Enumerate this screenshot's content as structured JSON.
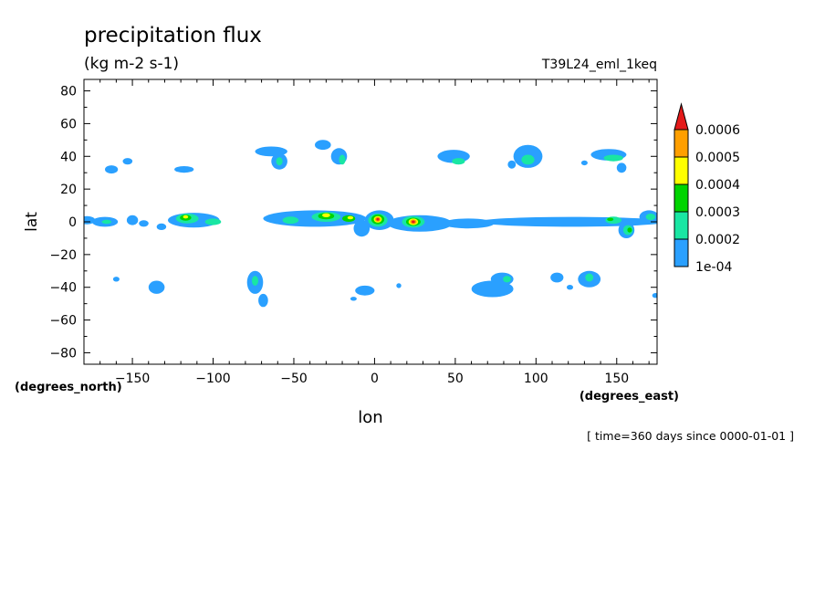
{
  "chart_data": {
    "type": "heatmap",
    "title": "precipitation flux",
    "subtitle": "(kg m-2 s-1)",
    "run_label": "T39L24_eml_1keq",
    "xlabel": "lon",
    "ylabel": "lat",
    "x_units": "(degrees_east)",
    "y_units": "(degrees_north)",
    "time_label": "[ time=360 days since 0000-01-01 ]",
    "xlim": [
      -180,
      175
    ],
    "ylim": [
      -87,
      87
    ],
    "x_ticks": [
      -150,
      -100,
      -50,
      0,
      50,
      100,
      150
    ],
    "x_tick_labels": [
      "−150",
      "−100",
      "−50",
      "0",
      "50",
      "100",
      "150"
    ],
    "y_ticks": [
      80,
      60,
      40,
      20,
      0,
      -20,
      -40,
      -60,
      -80
    ],
    "y_tick_labels": [
      "80",
      "60",
      "40",
      "20",
      "0",
      "−20",
      "−40",
      "−60",
      "−80"
    ],
    "colorbar": {
      "levels": [
        0.0001,
        0.0002,
        0.0003,
        0.0004,
        0.0005,
        0.0006
      ],
      "labels": [
        "1e-04",
        "0.0002",
        "0.0003",
        "0.0004",
        "0.0005",
        "0.0006"
      ],
      "colors": [
        "#2aa0ff",
        "#19e6a3",
        "#00d400",
        "#ffff00",
        "#ff9f00",
        "#e41a1a"
      ]
    },
    "regions": [
      {
        "lon": -178,
        "lat": 1,
        "rx": 5,
        "ry": 2.5,
        "level": 0
      },
      {
        "lon": -167,
        "lat": 0,
        "rx": 8,
        "ry": 3,
        "level": 0
      },
      {
        "lon": -166,
        "lat": 0,
        "rx": 3,
        "ry": 1.2,
        "level": 1
      },
      {
        "lon": -150,
        "lat": 1,
        "rx": 3.5,
        "ry": 3,
        "level": 0
      },
      {
        "lon": -143,
        "lat": -1,
        "rx": 3,
        "ry": 2,
        "level": 0
      },
      {
        "lon": -132,
        "lat": -3,
        "rx": 3,
        "ry": 2,
        "level": 0
      },
      {
        "lon": -112,
        "lat": 1,
        "rx": 16,
        "ry": 4.5,
        "level": 0
      },
      {
        "lon": -116,
        "lat": 2,
        "rx": 7,
        "ry": 3,
        "level": 1
      },
      {
        "lon": -117,
        "lat": 2.5,
        "rx": 3.5,
        "ry": 1.8,
        "level": 2
      },
      {
        "lon": -117,
        "lat": 3,
        "rx": 1.6,
        "ry": 1,
        "level": 3
      },
      {
        "lon": -100,
        "lat": 0,
        "rx": 5,
        "ry": 2,
        "level": 1
      },
      {
        "lon": -37,
        "lat": 2,
        "rx": 32,
        "ry": 5,
        "level": 0
      },
      {
        "lon": -52,
        "lat": 1,
        "rx": 5,
        "ry": 2.2,
        "level": 1
      },
      {
        "lon": -30,
        "lat": 3,
        "rx": 9,
        "ry": 3,
        "level": 1
      },
      {
        "lon": -30,
        "lat": 3.5,
        "rx": 5,
        "ry": 2,
        "level": 2
      },
      {
        "lon": -30,
        "lat": 4,
        "rx": 2.5,
        "ry": 1.2,
        "level": 3
      },
      {
        "lon": -16,
        "lat": 2,
        "rx": 4,
        "ry": 2,
        "level": 2
      },
      {
        "lon": -15,
        "lat": 2.5,
        "rx": 1.8,
        "ry": 1,
        "level": 3
      },
      {
        "lon": -8,
        "lat": -4,
        "rx": 5,
        "ry": 5,
        "level": 0
      },
      {
        "lon": 3,
        "lat": 1,
        "rx": 9,
        "ry": 6,
        "level": 0
      },
      {
        "lon": 2,
        "lat": 1,
        "rx": 6,
        "ry": 4,
        "level": 1
      },
      {
        "lon": 2,
        "lat": 1.5,
        "rx": 4,
        "ry": 3,
        "level": 2
      },
      {
        "lon": 2,
        "lat": 1.5,
        "rx": 2.5,
        "ry": 2,
        "level": 3
      },
      {
        "lon": 2,
        "lat": 1.5,
        "rx": 1.7,
        "ry": 1.4,
        "level": 4
      },
      {
        "lon": 2,
        "lat": 1.5,
        "rx": 0.9,
        "ry": 0.8,
        "level": 5
      },
      {
        "lon": 28,
        "lat": -1,
        "rx": 20,
        "ry": 5,
        "level": 0
      },
      {
        "lon": 24,
        "lat": 0,
        "rx": 7,
        "ry": 3.5,
        "level": 1
      },
      {
        "lon": 24,
        "lat": 0,
        "rx": 4.5,
        "ry": 2.5,
        "level": 2
      },
      {
        "lon": 24,
        "lat": 0,
        "rx": 3,
        "ry": 2,
        "level": 3
      },
      {
        "lon": 24,
        "lat": 0,
        "rx": 2,
        "ry": 1.4,
        "level": 4
      },
      {
        "lon": 24,
        "lat": 0,
        "rx": 1,
        "ry": 0.8,
        "level": 5
      },
      {
        "lon": 58,
        "lat": -1,
        "rx": 16,
        "ry": 3,
        "level": 0
      },
      {
        "lon": 122,
        "lat": 0,
        "rx": 58,
        "ry": 3,
        "level": 0
      },
      {
        "lon": 148,
        "lat": 1,
        "rx": 5,
        "ry": 2.2,
        "level": 1
      },
      {
        "lon": 146,
        "lat": 1.5,
        "rx": 2,
        "ry": 1,
        "level": 2
      },
      {
        "lon": 156,
        "lat": -5,
        "rx": 5,
        "ry": 5,
        "level": 0
      },
      {
        "lon": 157,
        "lat": -5,
        "rx": 3,
        "ry": 3,
        "level": 1
      },
      {
        "lon": 158,
        "lat": -5,
        "rx": 1.4,
        "ry": 1.5,
        "level": 2
      },
      {
        "lon": 170,
        "lat": 3,
        "rx": 6,
        "ry": 4,
        "level": 0
      },
      {
        "lon": 171,
        "lat": 3,
        "rx": 3,
        "ry": 2,
        "level": 1
      },
      {
        "lon": -163,
        "lat": 32,
        "rx": 4,
        "ry": 2.5,
        "level": 0
      },
      {
        "lon": -153,
        "lat": 37,
        "rx": 3,
        "ry": 2,
        "level": 0
      },
      {
        "lon": -118,
        "lat": 32,
        "rx": 6,
        "ry": 2,
        "level": 0
      },
      {
        "lon": -64,
        "lat": 43,
        "rx": 10,
        "ry": 3,
        "level": 0
      },
      {
        "lon": -59,
        "lat": 37,
        "rx": 5,
        "ry": 5,
        "level": 0
      },
      {
        "lon": -59,
        "lat": 37,
        "rx": 2,
        "ry": 2.5,
        "level": 1
      },
      {
        "lon": -32,
        "lat": 47,
        "rx": 5,
        "ry": 3,
        "level": 0
      },
      {
        "lon": -22,
        "lat": 40,
        "rx": 5,
        "ry": 5,
        "level": 0
      },
      {
        "lon": -20,
        "lat": 38,
        "rx": 2,
        "ry": 3,
        "level": 1
      },
      {
        "lon": 49,
        "lat": 40,
        "rx": 10,
        "ry": 4,
        "level": 0
      },
      {
        "lon": 52,
        "lat": 37,
        "rx": 4,
        "ry": 2,
        "level": 1
      },
      {
        "lon": 95,
        "lat": 40,
        "rx": 9,
        "ry": 7,
        "level": 0
      },
      {
        "lon": 95,
        "lat": 38,
        "rx": 4,
        "ry": 3,
        "level": 1
      },
      {
        "lon": 85,
        "lat": 35,
        "rx": 2.5,
        "ry": 2.5,
        "level": 0
      },
      {
        "lon": 145,
        "lat": 41,
        "rx": 11,
        "ry": 3.5,
        "level": 0
      },
      {
        "lon": 148,
        "lat": 39,
        "rx": 6,
        "ry": 2,
        "level": 1
      },
      {
        "lon": 153,
        "lat": 33,
        "rx": 3,
        "ry": 3,
        "level": 0
      },
      {
        "lon": 130,
        "lat": 36,
        "rx": 2,
        "ry": 1.5,
        "level": 0
      },
      {
        "lon": -160,
        "lat": -35,
        "rx": 2,
        "ry": 1.5,
        "level": 0
      },
      {
        "lon": -135,
        "lat": -40,
        "rx": 5,
        "ry": 4,
        "level": 0
      },
      {
        "lon": -74,
        "lat": -37,
        "rx": 5,
        "ry": 7,
        "level": 0
      },
      {
        "lon": -74,
        "lat": -36,
        "rx": 2,
        "ry": 3,
        "level": 1
      },
      {
        "lon": -69,
        "lat": -48,
        "rx": 3,
        "ry": 4,
        "level": 0
      },
      {
        "lon": -6,
        "lat": -42,
        "rx": 6,
        "ry": 3,
        "level": 0
      },
      {
        "lon": -13,
        "lat": -47,
        "rx": 2,
        "ry": 1.2,
        "level": 0
      },
      {
        "lon": 15,
        "lat": -39,
        "rx": 1.5,
        "ry": 1.5,
        "level": 0
      },
      {
        "lon": 73,
        "lat": -41,
        "rx": 13,
        "ry": 5,
        "level": 0
      },
      {
        "lon": 79,
        "lat": -35,
        "rx": 7,
        "ry": 4,
        "level": 0
      },
      {
        "lon": 82,
        "lat": -35,
        "rx": 2.5,
        "ry": 2,
        "level": 1
      },
      {
        "lon": 113,
        "lat": -34,
        "rx": 4,
        "ry": 3,
        "level": 0
      },
      {
        "lon": 133,
        "lat": -35,
        "rx": 7,
        "ry": 5,
        "level": 0
      },
      {
        "lon": 133,
        "lat": -34,
        "rx": 2.5,
        "ry": 2.5,
        "level": 1
      },
      {
        "lon": 121,
        "lat": -40,
        "rx": 2,
        "ry": 1.5,
        "level": 0
      },
      {
        "lon": 174,
        "lat": -45,
        "rx": 2,
        "ry": 1.5,
        "level": 0
      }
    ]
  }
}
